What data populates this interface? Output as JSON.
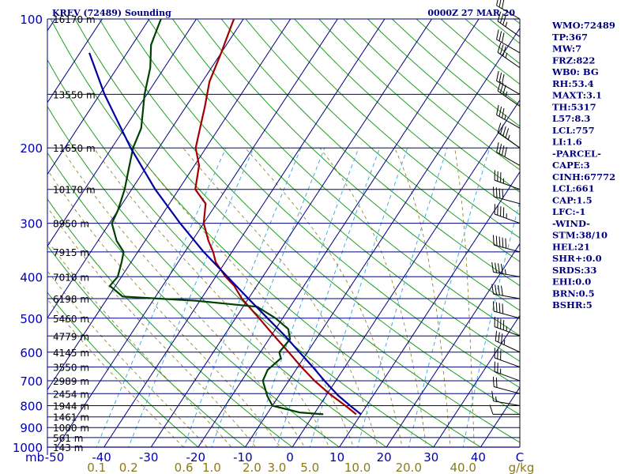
{
  "header": {
    "title": "KREV (72489) Sounding",
    "datetime": "0000Z 27 MAR 20"
  },
  "indices": [
    "WMO:72489",
    "TP:367",
    "MW:7",
    "FRZ:822",
    "WB0: BG",
    "RH:53.4",
    "MAXT:3.1",
    "TH:5317",
    "L57:8.3",
    "LCL:757",
    "LI:1.6",
    "-PARCEL-",
    "CAPE:3",
    "CINH:67772",
    "LCL:661",
    "CAP:1.5",
    "LFC:-1",
    "-WIND-",
    "STM:38/10",
    "HEL:21",
    "SHR+:0.0",
    "SRDS:33",
    "EHI:0.0",
    "BRN:0.5",
    "BSHR:5"
  ],
  "colors": {
    "isobar": "#00007f",
    "isotherm": "#00007f",
    "dry_adiabat": "#20a020",
    "mixing_ratio": "#40b0e0",
    "moist_adiabat": "#8a7a1a",
    "temperature": "#a00000",
    "dewpoint": "#004000",
    "parcel": "#0000a0",
    "wind": "#000000"
  },
  "chart_data": {
    "type": "skew-t",
    "pressure_axis": {
      "unit": "mb",
      "log_scale": true,
      "range": [
        1000,
        100
      ],
      "labels": [
        100,
        200,
        300,
        400,
        500,
        600,
        700,
        800,
        900,
        1000
      ]
    },
    "temperature_axis": {
      "unit": "C",
      "range": [
        -50,
        50
      ],
      "labels": [
        "-50",
        "-40",
        "-30",
        "-20",
        "-10",
        "0",
        "10",
        "20",
        "30",
        "40",
        "C"
      ]
    },
    "mixing_ratio_axis": {
      "unit": "g/kg",
      "labels": [
        "0.1",
        "0.2",
        "0.6",
        "1.0",
        "2.0",
        "3.0",
        "5.0",
        "10.0",
        "20.0",
        "40.0",
        "g/kg"
      ]
    },
    "height_labels": [
      {
        "p": 100,
        "label": "16170 m"
      },
      {
        "p": 150,
        "label": "13550 m"
      },
      {
        "p": 200,
        "label": "11650 m"
      },
      {
        "p": 250,
        "label": "10170 m"
      },
      {
        "p": 300,
        "label": "8950 m"
      },
      {
        "p": 350,
        "label": "7915 m"
      },
      {
        "p": 400,
        "label": "7010 m"
      },
      {
        "p": 450,
        "label": "6198 m"
      },
      {
        "p": 500,
        "label": "5460 m"
      },
      {
        "p": 550,
        "label": "4779 m"
      },
      {
        "p": 600,
        "label": "4145 m"
      },
      {
        "p": 650,
        "label": "3550 m"
      },
      {
        "p": 700,
        "label": "2989 m"
      },
      {
        "p": 750,
        "label": "2454 m"
      },
      {
        "p": 800,
        "label": "1944 m"
      },
      {
        "p": 850,
        "label": "1461 m"
      },
      {
        "p": 900,
        "label": "1000 m"
      },
      {
        "p": 950,
        "label": "561 m"
      },
      {
        "p": 1000,
        "label": "143 m"
      }
    ],
    "series": [
      {
        "name": "temperature",
        "points": [
          [
            838,
            9.0
          ],
          [
            800,
            5.5
          ],
          [
            750,
            0.4
          ],
          [
            700,
            -4.5
          ],
          [
            650,
            -9.2
          ],
          [
            600,
            -14.0
          ],
          [
            550,
            -19.3
          ],
          [
            500,
            -25.0
          ],
          [
            450,
            -31.4
          ],
          [
            420,
            -34.8
          ],
          [
            400,
            -37.9
          ],
          [
            370,
            -42.0
          ],
          [
            350,
            -44.0
          ],
          [
            330,
            -46.5
          ],
          [
            300,
            -50.0
          ],
          [
            270,
            -52.3
          ],
          [
            250,
            -56.5
          ],
          [
            220,
            -59.0
          ],
          [
            200,
            -62.2
          ],
          [
            180,
            -64.0
          ],
          [
            160,
            -66.0
          ],
          [
            140,
            -68.5
          ],
          [
            120,
            -70.0
          ],
          [
            105,
            -71.5
          ],
          [
            100,
            -72.0
          ]
        ]
      },
      {
        "name": "dewpoint",
        "points": [
          [
            838,
            2.0
          ],
          [
            830,
            -3.3
          ],
          [
            800,
            -10.0
          ],
          [
            760,
            -12.4
          ],
          [
            700,
            -15.5
          ],
          [
            660,
            -16.0
          ],
          [
            620,
            -14.8
          ],
          [
            600,
            -16.0
          ],
          [
            560,
            -15.5
          ],
          [
            530,
            -17.3
          ],
          [
            500,
            -21.5
          ],
          [
            470,
            -27.0
          ],
          [
            455,
            -41.0
          ],
          [
            445,
            -57.0
          ],
          [
            420,
            -61.2
          ],
          [
            400,
            -60.8
          ],
          [
            370,
            -62.0
          ],
          [
            350,
            -63.0
          ],
          [
            330,
            -66.0
          ],
          [
            300,
            -69.5
          ],
          [
            280,
            -70.0
          ],
          [
            250,
            -71.5
          ],
          [
            230,
            -73.0
          ],
          [
            200,
            -75.5
          ],
          [
            180,
            -76.5
          ],
          [
            150,
            -80.5
          ],
          [
            130,
            -83.0
          ],
          [
            115,
            -86.0
          ],
          [
            105,
            -87.0
          ],
          [
            100,
            -87.5
          ]
        ]
      },
      {
        "name": "parcel",
        "points": [
          [
            838,
            10.0
          ],
          [
            800,
            6.5
          ],
          [
            757,
            2.5
          ],
          [
            700,
            -2.4
          ],
          [
            650,
            -6.8
          ],
          [
            600,
            -11.7
          ],
          [
            550,
            -17.0
          ],
          [
            500,
            -23.2
          ],
          [
            450,
            -30.0
          ],
          [
            400,
            -37.5
          ],
          [
            350,
            -46.0
          ],
          [
            300,
            -55.0
          ],
          [
            250,
            -65.0
          ],
          [
            200,
            -76.0
          ],
          [
            150,
            -89.0
          ],
          [
            120,
            -98.0
          ]
        ]
      }
    ],
    "wind_barbs": [
      {
        "p": 838,
        "dir": 270,
        "kt": 10
      },
      {
        "p": 800,
        "dir": 280,
        "kt": 15
      },
      {
        "p": 750,
        "dir": 285,
        "kt": 20
      },
      {
        "p": 700,
        "dir": 290,
        "kt": 25
      },
      {
        "p": 650,
        "dir": 290,
        "kt": 30
      },
      {
        "p": 600,
        "dir": 295,
        "kt": 35
      },
      {
        "p": 550,
        "dir": 290,
        "kt": 45
      },
      {
        "p": 500,
        "dir": 285,
        "kt": 40
      },
      {
        "p": 450,
        "dir": 280,
        "kt": 40
      },
      {
        "p": 400,
        "dir": 280,
        "kt": 45
      },
      {
        "p": 350,
        "dir": 285,
        "kt": 50
      },
      {
        "p": 300,
        "dir": 290,
        "kt": 45
      },
      {
        "p": 270,
        "dir": 285,
        "kt": 40
      },
      {
        "p": 250,
        "dir": 290,
        "kt": 35
      },
      {
        "p": 220,
        "dir": 300,
        "kt": 40
      },
      {
        "p": 200,
        "dir": 305,
        "kt": 45
      },
      {
        "p": 180,
        "dir": 300,
        "kt": 35
      },
      {
        "p": 160,
        "dir": 305,
        "kt": 35
      },
      {
        "p": 150,
        "dir": 300,
        "kt": 30
      },
      {
        "p": 130,
        "dir": 305,
        "kt": 35
      },
      {
        "p": 120,
        "dir": 300,
        "kt": 30
      },
      {
        "p": 110,
        "dir": 305,
        "kt": 35
      },
      {
        "p": 100,
        "dir": 300,
        "kt": 30
      }
    ]
  }
}
